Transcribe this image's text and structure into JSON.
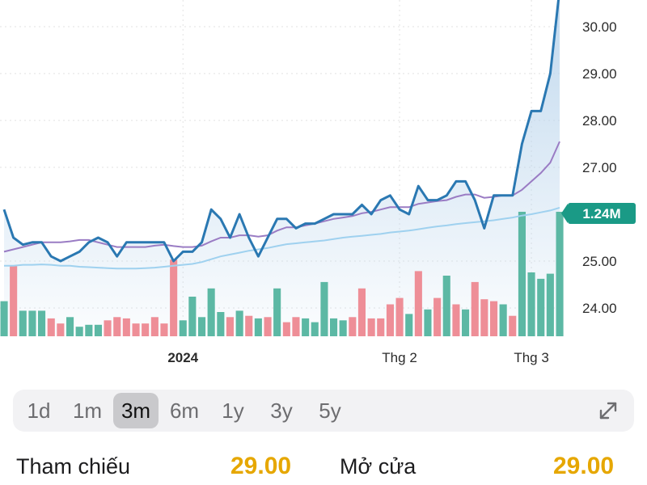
{
  "chart_data": {
    "type": "line",
    "y_axis": {
      "ticks": [
        "30.00",
        "29.00",
        "28.00",
        "27.00",
        "25.00",
        "24.00"
      ],
      "tick_values": [
        30,
        29,
        28,
        27,
        25,
        24
      ],
      "range": [
        23.4,
        30.8
      ],
      "position": "right"
    },
    "x_axis": {
      "tick_labels": [
        "2024",
        "Thg 2",
        "Thg 3"
      ],
      "tick_index": [
        19,
        42,
        56
      ]
    },
    "current_volume_label": "1.24M",
    "price": [
      26.1,
      25.5,
      25.35,
      25.4,
      25.4,
      25.1,
      25.0,
      25.1,
      25.2,
      25.4,
      25.5,
      25.4,
      25.1,
      25.4,
      25.4,
      25.4,
      25.4,
      25.4,
      25.0,
      25.2,
      25.2,
      25.4,
      26.1,
      25.9,
      25.5,
      26.0,
      25.5,
      25.1,
      25.5,
      25.9,
      25.9,
      25.7,
      25.8,
      25.8,
      25.9,
      26.0,
      26.0,
      26.0,
      26.2,
      26.0,
      26.3,
      26.4,
      26.1,
      26.0,
      26.6,
      26.3,
      26.3,
      26.4,
      26.7,
      26.7,
      26.3,
      25.7,
      26.4,
      26.4,
      26.4,
      27.5,
      28.2,
      28.2,
      29.0,
      30.8
    ],
    "ma_short": [
      25.2,
      25.25,
      25.3,
      25.35,
      25.4,
      25.4,
      25.4,
      25.42,
      25.45,
      25.45,
      25.4,
      25.35,
      25.3,
      25.3,
      25.3,
      25.3,
      25.33,
      25.35,
      25.32,
      25.3,
      25.3,
      25.33,
      25.42,
      25.5,
      25.5,
      25.55,
      25.55,
      25.52,
      25.55,
      25.65,
      25.72,
      25.72,
      25.76,
      25.8,
      25.85,
      25.9,
      25.93,
      25.96,
      26.02,
      26.05,
      26.1,
      26.15,
      26.15,
      26.15,
      26.22,
      26.25,
      26.28,
      26.3,
      26.37,
      26.42,
      26.42,
      26.35,
      26.37,
      26.4,
      26.4,
      26.52,
      26.7,
      26.88,
      27.1,
      27.55
    ],
    "ma_long": [
      24.9,
      24.9,
      24.92,
      24.92,
      24.93,
      24.92,
      24.9,
      24.9,
      24.88,
      24.87,
      24.86,
      24.85,
      24.84,
      24.84,
      24.84,
      24.85,
      24.86,
      24.88,
      24.9,
      24.92,
      24.94,
      24.98,
      25.04,
      25.1,
      25.14,
      25.18,
      25.22,
      25.25,
      25.28,
      25.32,
      25.36,
      25.38,
      25.4,
      25.42,
      25.44,
      25.47,
      25.5,
      25.52,
      25.54,
      25.56,
      25.58,
      25.61,
      25.63,
      25.65,
      25.68,
      25.71,
      25.74,
      25.76,
      25.79,
      25.81,
      25.83,
      25.85,
      25.87,
      25.9,
      25.93,
      25.97,
      26.0,
      26.04,
      26.08,
      26.14
    ],
    "volume": [
      0.55,
      1.1,
      0.4,
      0.4,
      0.4,
      0.28,
      0.2,
      0.3,
      0.15,
      0.18,
      0.18,
      0.25,
      0.3,
      0.28,
      0.2,
      0.2,
      0.3,
      0.2,
      1.2,
      0.25,
      0.62,
      0.3,
      0.75,
      0.38,
      0.3,
      0.4,
      0.32,
      0.28,
      0.3,
      0.75,
      0.22,
      0.3,
      0.28,
      0.22,
      0.85,
      0.28,
      0.25,
      0.3,
      0.75,
      0.28,
      0.28,
      0.5,
      0.6,
      0.35,
      1.02,
      0.42,
      0.6,
      0.95,
      0.5,
      0.42,
      0.85,
      0.58,
      0.55,
      0.5,
      0.32,
      1.95,
      1.0,
      0.9,
      0.98,
      1.95
    ],
    "volume_colors": [
      "g",
      "r",
      "g",
      "g",
      "g",
      "r",
      "r",
      "g",
      "g",
      "g",
      "g",
      "r",
      "r",
      "r",
      "r",
      "r",
      "r",
      "r",
      "r",
      "g",
      "g",
      "g",
      "g",
      "g",
      "r",
      "g",
      "r",
      "g",
      "r",
      "g",
      "r",
      "r",
      "g",
      "g",
      "g",
      "g",
      "g",
      "r",
      "r",
      "r",
      "r",
      "r",
      "r",
      "g",
      "r",
      "g",
      "r",
      "g",
      "r",
      "g",
      "r",
      "r",
      "r",
      "g",
      "r",
      "g",
      "g",
      "g",
      "g",
      "g"
    ]
  },
  "colors": {
    "price_line": "#2a78b2",
    "area_top": "#b9d4ec",
    "ma_short": "#9a7cc4",
    "ma_long": "#9fd1ef",
    "vol_up": "#5cb8a4",
    "vol_down": "#ee8e97",
    "badge": "#1a9a86",
    "grid": "#e2e2e2"
  },
  "range_selector": {
    "options": [
      "1d",
      "1m",
      "3m",
      "6m",
      "1y",
      "3y",
      "5y"
    ],
    "selected": "3m",
    "expand_icon": "expand-arrows-icon"
  },
  "info": {
    "reference_label": "Tham chiếu",
    "reference_value": "29.00",
    "open_label": "Mở cửa",
    "open_value": "29.00"
  }
}
